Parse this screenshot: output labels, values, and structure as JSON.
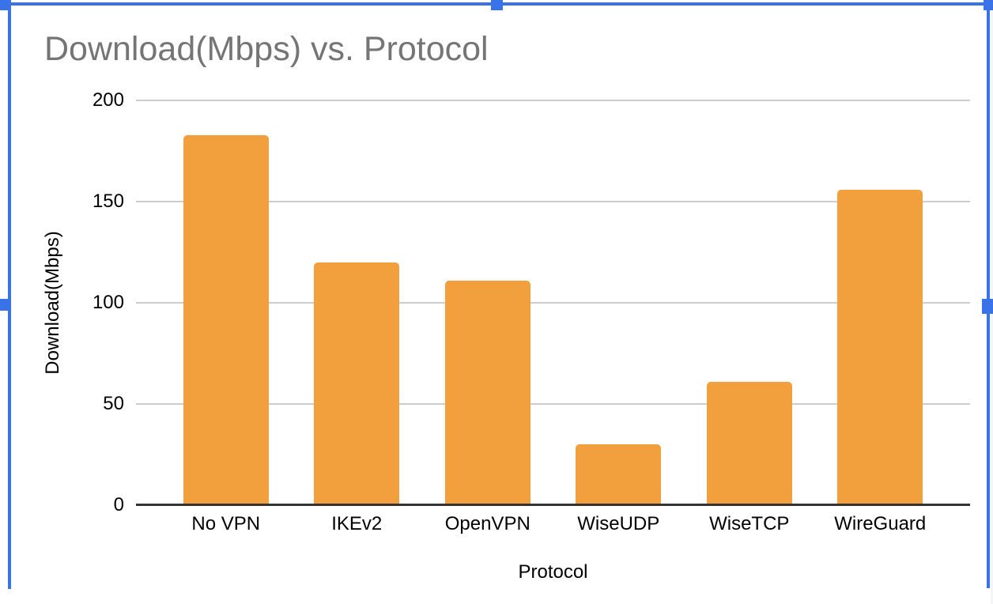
{
  "colors": {
    "selection_blue": "#3a73e8",
    "bar_orange": "#f2a03e",
    "title_gray": "#757575",
    "gridline_gray": "#cccccc",
    "axis_line": "#333333",
    "label_black": "#000000",
    "canvas_edge_gray": "#f4f5f6",
    "background": "#ffffff"
  },
  "chart_data": {
    "type": "bar",
    "title": "Download(Mbps) vs. Protocol",
    "xlabel": "Protocol",
    "ylabel": "Download(Mbps)",
    "categories": [
      "No VPN",
      "IKEv2",
      "OpenVPN",
      "WiseUDP",
      "WiseTCP",
      "WireGuard"
    ],
    "values": [
      183,
      120,
      111,
      30,
      61,
      156
    ],
    "ylim": [
      0,
      200
    ],
    "yticks": [
      0,
      50,
      100,
      150,
      200
    ],
    "grid": "horizontal",
    "legend": "none",
    "series_color": "#f2a03e"
  }
}
